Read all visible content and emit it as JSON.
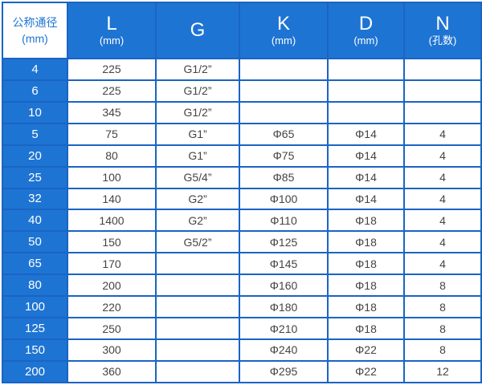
{
  "header": {
    "corner": [
      "公称通径",
      "(mm)"
    ],
    "columns": [
      {
        "label": "L",
        "unit": "(mm)"
      },
      {
        "label": "G",
        "unit": ""
      },
      {
        "label": "K",
        "unit": "(mm)"
      },
      {
        "label": "D",
        "unit": "(mm)"
      },
      {
        "label": "N",
        "unit": "(孔数)"
      }
    ]
  },
  "rows": [
    [
      "4",
      "225",
      "G1/2”",
      "",
      "",
      ""
    ],
    [
      "6",
      "225",
      "G1/2”",
      "",
      "",
      ""
    ],
    [
      "10",
      "345",
      "G1/2”",
      "",
      "",
      ""
    ],
    [
      "5",
      "75",
      "G1”",
      "Φ65",
      "Φ14",
      "4"
    ],
    [
      "20",
      "80",
      "G1”",
      "Φ75",
      "Φ14",
      "4"
    ],
    [
      "25",
      "100",
      "G5/4”",
      "Φ85",
      "Φ14",
      "4"
    ],
    [
      "32",
      "140",
      "G2”",
      "Φ100",
      "Φ14",
      "4"
    ],
    [
      "40",
      "1400",
      "G2”",
      "Φ110",
      "Φ18",
      "4"
    ],
    [
      "50",
      "150",
      "G5/2”",
      "Φ125",
      "Φ18",
      "4"
    ],
    [
      "65",
      "170",
      "",
      "Φ145",
      "Φ18",
      "4"
    ],
    [
      "80",
      "200",
      "",
      "Φ160",
      "Φ18",
      "8"
    ],
    [
      "100",
      "220",
      "",
      "Φ180",
      "Φ18",
      "8"
    ],
    [
      "125",
      "250",
      "",
      "Φ210",
      "Φ18",
      "8"
    ],
    [
      "150",
      "300",
      "",
      "Φ240",
      "Φ22",
      "8"
    ],
    [
      "200",
      "360",
      "",
      "Φ295",
      "Φ22",
      "12"
    ]
  ],
  "colors": {
    "accent": "#1e74d3",
    "border": "#1a64c4"
  }
}
